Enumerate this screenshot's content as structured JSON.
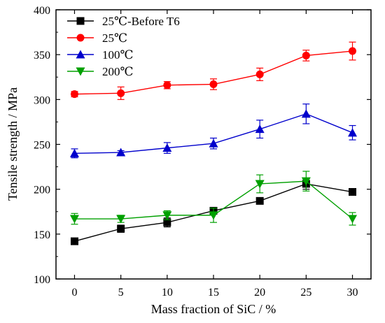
{
  "chart_data": {
    "type": "line",
    "xlabel": "Mass fraction of SiC / %",
    "ylabel": "Tensile strength / MPa",
    "xlim": [
      -2,
      32
    ],
    "ylim": [
      100,
      400
    ],
    "xticks": [
      0,
      5,
      10,
      15,
      20,
      25,
      30
    ],
    "yticks": [
      100,
      150,
      200,
      250,
      300,
      350,
      400
    ],
    "grid": false,
    "legend_position": "top-left",
    "series": [
      {
        "name": "25℃-Before T6",
        "color": "#000000",
        "marker": "square",
        "x": [
          0,
          5,
          10,
          15,
          20,
          25,
          30
        ],
        "y": [
          142,
          156,
          163,
          176,
          187,
          206,
          197
        ],
        "err": [
          2,
          4,
          5,
          3,
          2,
          6,
          3
        ]
      },
      {
        "name": "25℃",
        "color": "#ff0000",
        "marker": "circle",
        "x": [
          0,
          5,
          10,
          15,
          20,
          25,
          30
        ],
        "y": [
          306,
          307,
          316,
          317,
          328,
          349,
          354
        ],
        "err": [
          3,
          7,
          4,
          6,
          7,
          6,
          10
        ]
      },
      {
        "name": "100℃",
        "color": "#0000cc",
        "marker": "triangle-up",
        "x": [
          0,
          5,
          10,
          15,
          20,
          25,
          30
        ],
        "y": [
          240,
          241,
          246,
          251,
          267,
          284,
          263
        ],
        "err": [
          5,
          2,
          6,
          6,
          10,
          11,
          8
        ]
      },
      {
        "name": "200℃",
        "color": "#00a000",
        "marker": "triangle-down",
        "x": [
          0,
          5,
          10,
          15,
          20,
          25,
          30
        ],
        "y": [
          167,
          167,
          171,
          171,
          206,
          209,
          167
        ],
        "err": [
          6,
          4,
          5,
          8,
          10,
          11,
          7
        ]
      }
    ]
  }
}
